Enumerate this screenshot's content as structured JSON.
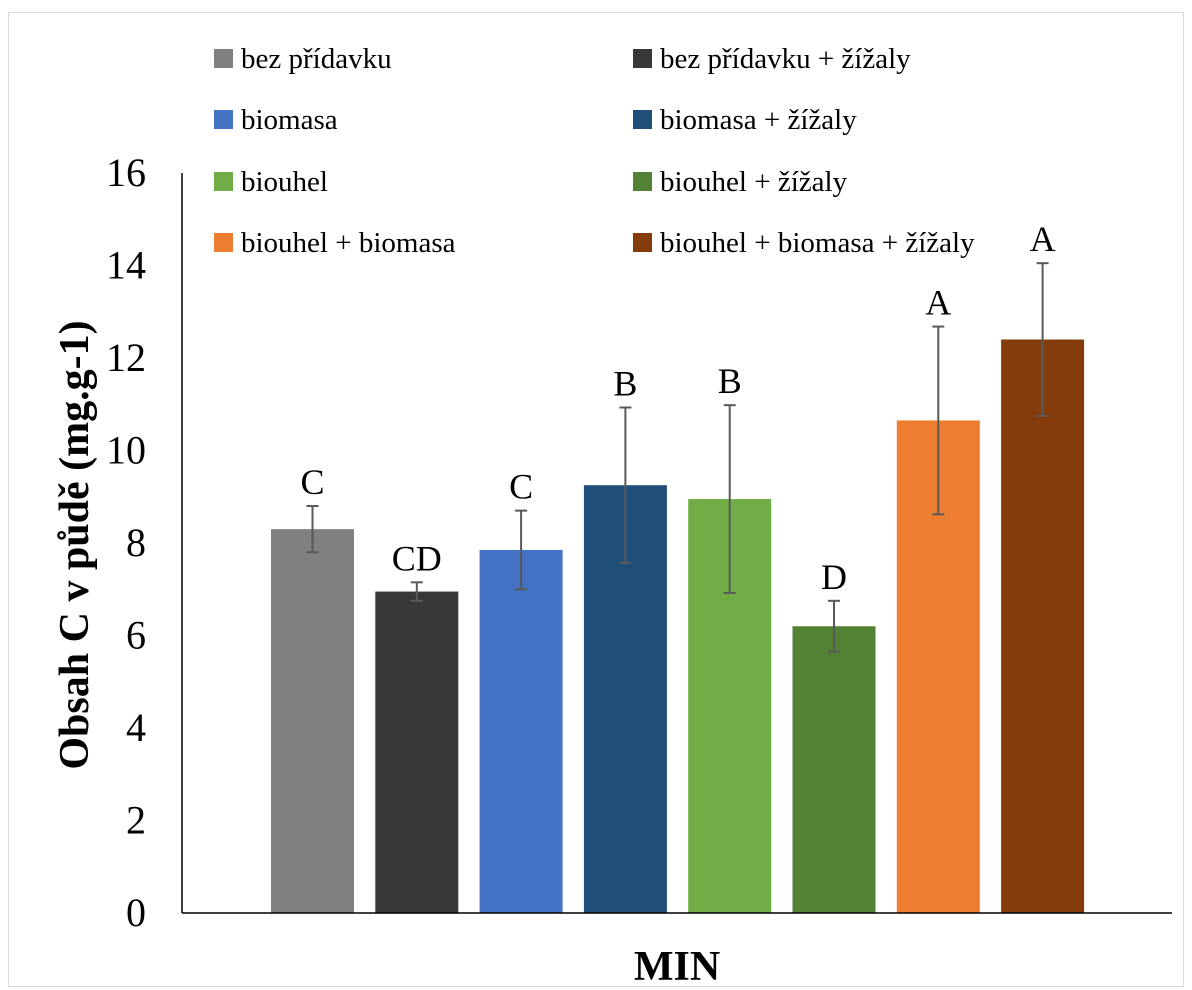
{
  "chart_data": {
    "type": "bar",
    "title": "",
    "xlabel": "MIN",
    "ylabel": "Obsah C v půdě (mg.g-1)",
    "ylim": [
      0,
      16
    ],
    "yticks": [
      "0",
      "2",
      "4",
      "6",
      "8",
      "10",
      "12",
      "14",
      "16"
    ],
    "grid": false,
    "legend_position": "top",
    "series": [
      {
        "name": "bez přídavku",
        "value": 8.3,
        "error": 0.5,
        "letter": "C",
        "color": "#808080"
      },
      {
        "name": "bez přídavku + žížaly",
        "value": 6.95,
        "error": 0.2,
        "letter": "CD",
        "color": "#383838"
      },
      {
        "name": "biomasa",
        "value": 7.85,
        "error": 0.85,
        "letter": "C",
        "color": "#4472c4"
      },
      {
        "name": "biomasa + žížaly",
        "value": 9.25,
        "error": 1.68,
        "letter": "B",
        "color": "#1f4e79"
      },
      {
        "name": "biouhel",
        "value": 8.95,
        "error": 2.03,
        "letter": "B",
        "color": "#70ad47"
      },
      {
        "name": "biouhel + žížaly",
        "value": 6.2,
        "error": 0.55,
        "letter": "D",
        "color": "#548235"
      },
      {
        "name": "biouhel + biomasa",
        "value": 10.65,
        "error": 2.03,
        "letter": "A",
        "color": "#ed7d31"
      },
      {
        "name": "biouhel + biomasa + žížaly",
        "value": 12.4,
        "error": 1.65,
        "letter": "A",
        "color": "#843c0c"
      }
    ]
  }
}
